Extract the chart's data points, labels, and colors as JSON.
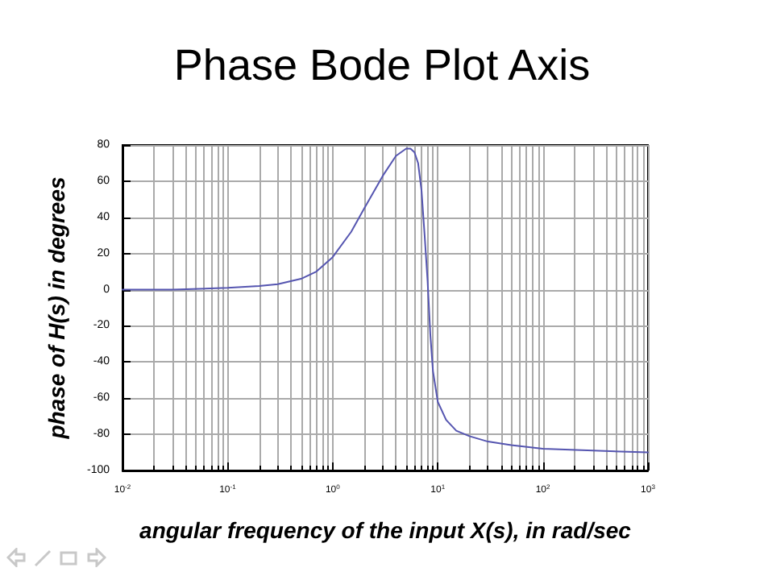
{
  "chart_data": {
    "type": "line",
    "title": "Phase Bode Plot Axis",
    "xlabel": "angular frequency of the input X(s), in rad/sec",
    "ylabel": "phase of H(s) in degrees",
    "x": [
      0.01,
      0.03,
      0.1,
      0.2,
      0.3,
      0.5,
      0.7,
      1,
      1.5,
      2,
      3,
      4,
      5,
      5.5,
      6,
      6.5,
      7,
      7.5,
      8,
      8.5,
      9,
      10,
      12,
      15,
      20,
      30,
      50,
      100,
      300,
      1000
    ],
    "series": [
      {
        "color": "#5555b0",
        "values": [
          0,
          0,
          1,
          2,
          3,
          6,
          10,
          18,
          32,
          45,
          63,
          74,
          78,
          78,
          76,
          70,
          55,
          30,
          5,
          -25,
          -45,
          -62,
          -72,
          -78,
          -81,
          -84,
          -86,
          -88,
          -89,
          -90
        ]
      }
    ],
    "log": "x",
    "xlim": [
      0.01,
      1000
    ],
    "xticks": [
      {
        "value": 0.01,
        "label": "10$^{-2}$"
      },
      {
        "value": 0.1,
        "label": "10$^{-1}$"
      },
      {
        "value": 1,
        "label": "10$^{0}$"
      },
      {
        "value": 10,
        "label": "10$^{1}$"
      },
      {
        "value": 100,
        "label": "10$^{2}$"
      },
      {
        "value": 1000,
        "label": "10$^{3}$"
      }
    ],
    "ylim": [
      -100,
      80
    ],
    "yticks": [
      -100,
      -80,
      -60,
      -40,
      -20,
      0,
      20,
      40,
      60,
      80
    ],
    "grid": true,
    "marker": "none",
    "line_style": "solid"
  }
}
